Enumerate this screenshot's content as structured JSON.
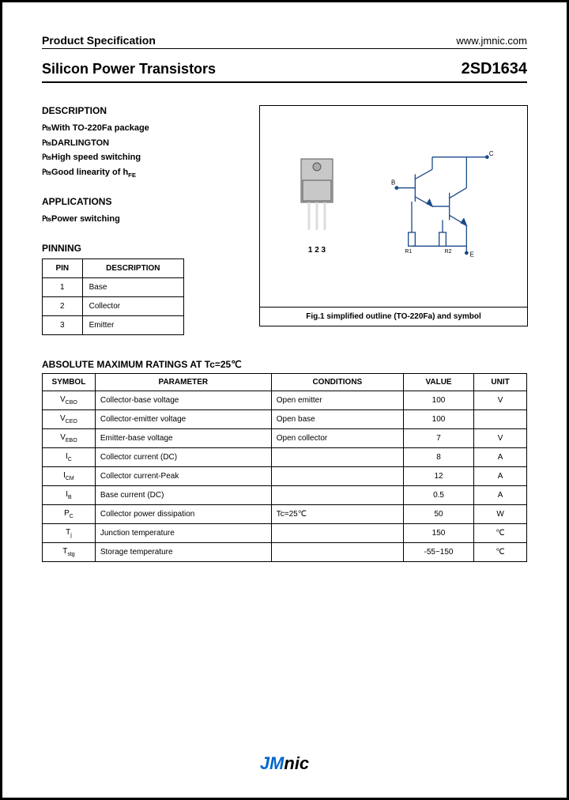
{
  "header": {
    "left": "Product Specification",
    "right": "www.jmnic.com"
  },
  "title": {
    "left": "Silicon Power Transistors",
    "right": "2SD1634"
  },
  "description": {
    "heading": "DESCRIPTION",
    "items": [
      "With TO-220Fa package",
      "DARLINGTON",
      "High speed switching",
      "Good linearity of hFE"
    ]
  },
  "applications": {
    "heading": "APPLICATIONS",
    "items": [
      "Power switching"
    ]
  },
  "pinning": {
    "heading": "PINNING",
    "columns": [
      "PIN",
      "DESCRIPTION"
    ],
    "rows": [
      [
        "1",
        "Base"
      ],
      [
        "2",
        "Collector"
      ],
      [
        "3",
        "Emitter"
      ]
    ]
  },
  "figure": {
    "pin_labels": "1 2 3",
    "caption": "Fig.1 simplified outline (TO-220Fa) and symbol",
    "terminals": {
      "b": "B",
      "c": "C",
      "e": "E",
      "r1": "R1",
      "r2": "R2"
    },
    "package_colors": {
      "body": "#c8c8c8",
      "hole_fill": "#aaa",
      "pin": "#ddd"
    },
    "circuit_colors": {
      "line": "#1a4a8a"
    }
  },
  "ratings": {
    "title": "ABSOLUTE MAXIMUM RATINGS AT Tc=25℃",
    "columns": [
      "SYMBOL",
      "PARAMETER",
      "CONDITIONS",
      "VALUE",
      "UNIT"
    ],
    "col_widths": [
      "60px",
      "200px",
      "150px",
      "80px",
      "60px"
    ],
    "rows": [
      {
        "symbol": "V<sub>CBO</sub>",
        "parameter": "Collector-base voltage",
        "conditions": "Open emitter",
        "value": "100",
        "unit": "V"
      },
      {
        "symbol": "V<sub>CEO</sub>",
        "parameter": "Collector-emitter voltage",
        "conditions": "Open base",
        "value": "100",
        "unit": ""
      },
      {
        "symbol": "V<sub>EBO</sub>",
        "parameter": "Emitter-base voltage",
        "conditions": "Open collector",
        "value": "7",
        "unit": "V"
      },
      {
        "symbol": "I<sub>C</sub>",
        "parameter": "Collector current (DC)",
        "conditions": "",
        "value": "8",
        "unit": "A"
      },
      {
        "symbol": "I<sub>CM</sub>",
        "parameter": "Collector current-Peak",
        "conditions": "",
        "value": "12",
        "unit": "A"
      },
      {
        "symbol": "I<sub>B</sub>",
        "parameter": "Base current (DC)",
        "conditions": "",
        "value": "0.5",
        "unit": "A"
      },
      {
        "symbol": "P<sub>C</sub>",
        "parameter": "Collector power dissipation",
        "conditions": "Tc=25℃",
        "value": "50",
        "unit": "W"
      },
      {
        "symbol": "T<sub>j</sub>",
        "parameter": "Junction temperature",
        "conditions": "",
        "value": "150",
        "unit": "℃"
      },
      {
        "symbol": "T<sub>stg</sub>",
        "parameter": "Storage temperature",
        "conditions": "",
        "value": "-55~150",
        "unit": "℃"
      }
    ]
  },
  "footer": {
    "logo_part1": "JM",
    "logo_part2": "nic"
  }
}
